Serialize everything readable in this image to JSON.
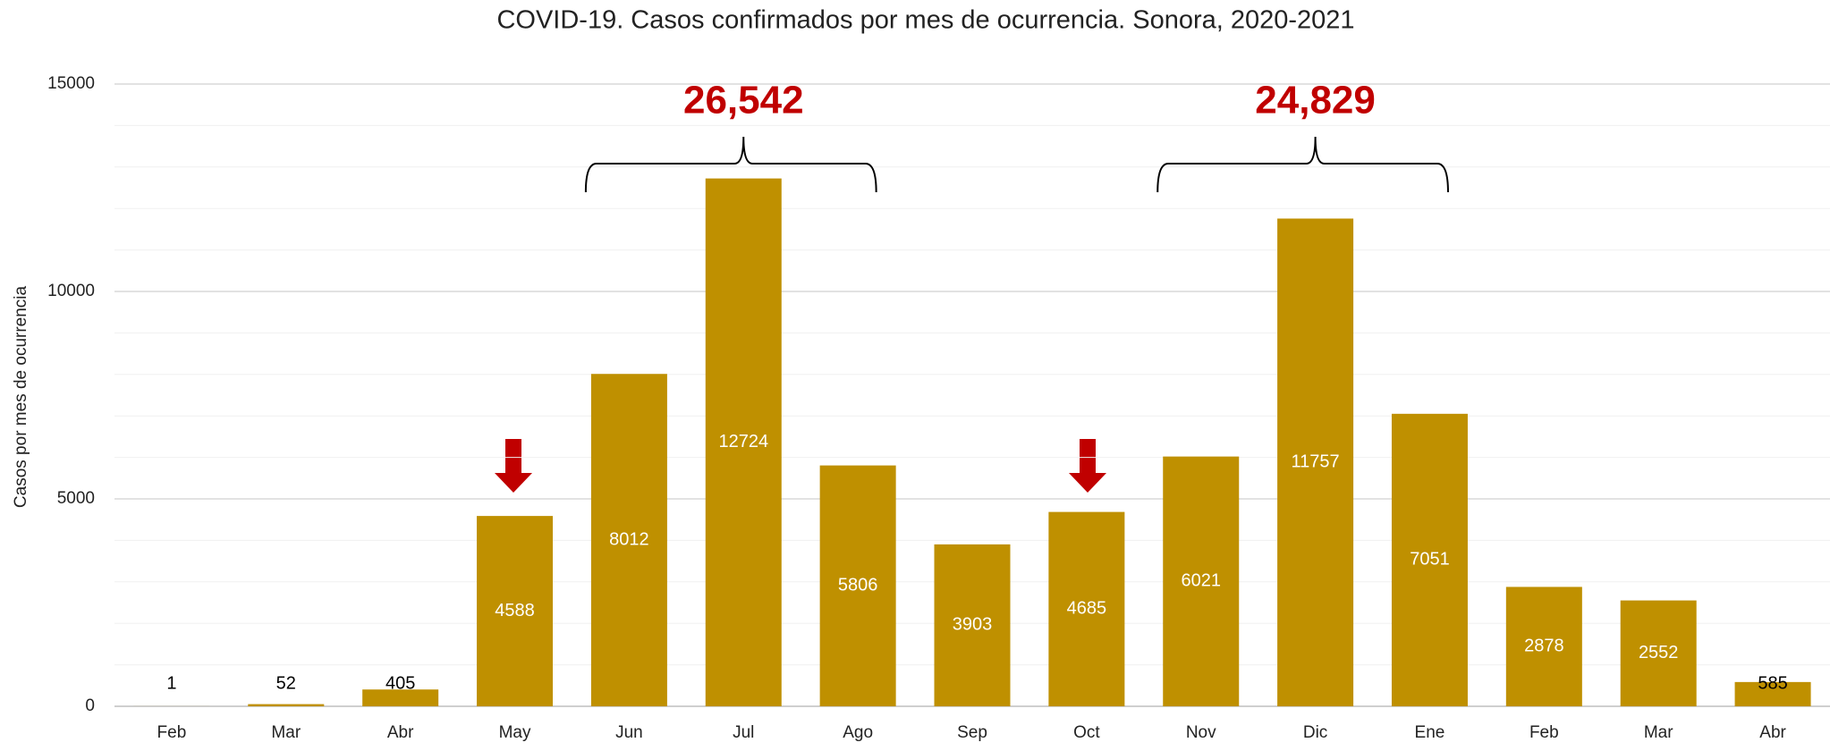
{
  "chart_data": {
    "type": "bar",
    "title": "COVID-19. Casos confirmados por mes de ocurrencia. Sonora, 2020-2021",
    "y_label": "Casos por mes de ocurrencia",
    "categories": [
      "Feb",
      "Mar",
      "Abr",
      "May",
      "Jun",
      "Jul",
      "Ago",
      "Sep",
      "Oct",
      "Nov",
      "Dic",
      "Ene",
      "Feb",
      "Mar",
      "Abr"
    ],
    "values": [
      1,
      52,
      405,
      4588,
      8012,
      12724,
      5806,
      3903,
      4685,
      6021,
      11757,
      7051,
      2878,
      2552,
      585
    ],
    "color": "#bf9000",
    "ylim": [
      0,
      15000
    ],
    "yticks": [
      0,
      5000,
      10000,
      15000
    ],
    "grid": true,
    "annotations": [
      {
        "value": 26542,
        "label": "26,542",
        "color": "#c00000"
      },
      {
        "value": 24829,
        "label": "24,829",
        "color": "#c00000"
      }
    ]
  }
}
